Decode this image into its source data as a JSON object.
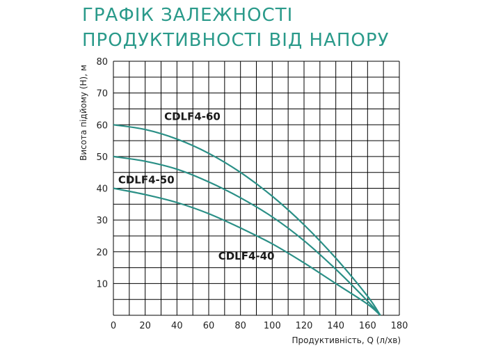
{
  "title_lines": [
    "ГРАФІК ЗАЛЕЖНОСТІ",
    "ПРОДУКТИВНОСТІ ВІД НАПОРУ"
  ],
  "colors": {
    "title": "#2a9a8a",
    "curve": "#2a8f86",
    "grid": "#000000"
  },
  "chart_data": {
    "type": "line",
    "title": "ГРАФІК ЗАЛЕЖНОСТІ ПРОДУКТИВНОСТІ ВІД НАПОРУ",
    "xlabel": "Продуктивність, Q (л/хв)",
    "ylabel": "Висота підйому (H), м",
    "xlim": [
      0,
      180
    ],
    "ylim": [
      0,
      80
    ],
    "xticks": [
      0,
      20,
      40,
      60,
      80,
      100,
      120,
      140,
      160,
      180
    ],
    "yticks": [
      10,
      20,
      30,
      40,
      50,
      60,
      70,
      80
    ],
    "grid": true,
    "series": [
      {
        "name": "CDLF4-60",
        "x": [
          0,
          20,
          40,
          60,
          80,
          100,
          120,
          140,
          160,
          168
        ],
        "y": [
          60,
          58.5,
          55.5,
          51,
          45,
          37.5,
          28.5,
          18,
          6,
          0
        ]
      },
      {
        "name": "CDLF4-50",
        "x": [
          0,
          20,
          40,
          60,
          80,
          100,
          120,
          140,
          160,
          168
        ],
        "y": [
          50,
          48.5,
          46,
          42,
          37,
          31,
          23.5,
          14.5,
          4.5,
          0
        ]
      },
      {
        "name": "CDLF4-40",
        "x": [
          0,
          20,
          40,
          60,
          80,
          100,
          120,
          140,
          160,
          168
        ],
        "y": [
          40,
          38,
          35.5,
          32,
          27.5,
          22.5,
          16.5,
          10,
          3.5,
          0
        ]
      }
    ]
  }
}
